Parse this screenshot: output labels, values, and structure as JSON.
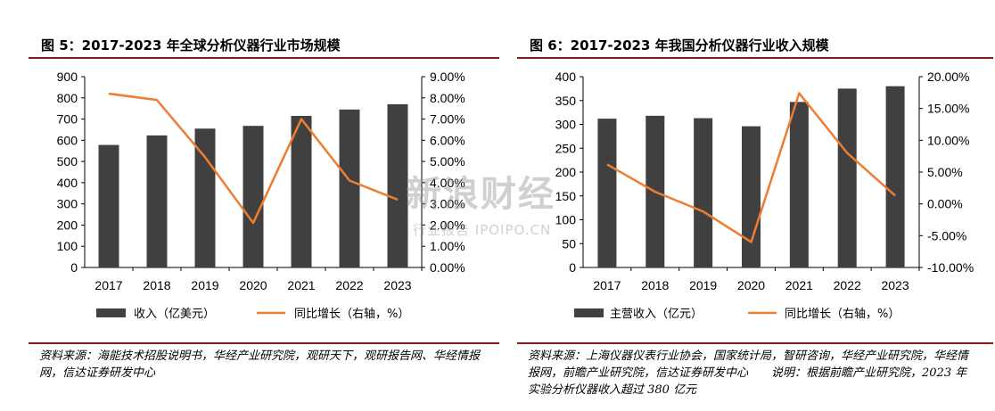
{
  "chart_data": [
    {
      "type": "bar",
      "title": "图 5：2017-2023 年全球分析仪器行业市场规模",
      "categories": [
        "2017",
        "2018",
        "2019",
        "2020",
        "2021",
        "2022",
        "2023"
      ],
      "series": [
        {
          "name": "收入（亿美元）",
          "type": "bar",
          "axis": "left",
          "values": [
            578,
            623,
            655,
            668,
            715,
            745,
            770
          ]
        },
        {
          "name": "同比增长（右轴，%）",
          "type": "line",
          "axis": "right",
          "values": [
            8.2,
            7.9,
            5.2,
            2.1,
            7.0,
            4.1,
            3.2
          ]
        }
      ],
      "y_left": {
        "range": [
          0,
          900
        ],
        "ticks": [
          "0",
          "100",
          "200",
          "300",
          "400",
          "500",
          "600",
          "700",
          "800",
          "900"
        ]
      },
      "y_right": {
        "range": [
          0,
          9
        ],
        "ticks": [
          "0.00%",
          "1.00%",
          "2.00%",
          "3.00%",
          "4.00%",
          "5.00%",
          "6.00%",
          "7.00%",
          "8.00%",
          "9.00%"
        ]
      },
      "legend_position": "bottom",
      "grid": false,
      "colors": {
        "bar": "#404040",
        "line": "#ed7d31"
      },
      "source": "资料来源：海能技术招股说明书，华经产业研究院，观研天下，观研报告网、华经情报网，信达证券研发中心"
    },
    {
      "type": "bar",
      "title": "图 6：2017-2023 年我国分析仪器行业收入规模",
      "categories": [
        "2017",
        "2018",
        "2019",
        "2020",
        "2021",
        "2022",
        "2023"
      ],
      "series": [
        {
          "name": "主营收入（亿元）",
          "type": "bar",
          "axis": "left",
          "values": [
            312,
            318,
            313,
            296,
            347,
            375,
            380
          ]
        },
        {
          "name": "同比增长（右轴，%）",
          "type": "line",
          "axis": "right",
          "values": [
            6.2,
            1.9,
            -1.2,
            -6.0,
            17.4,
            8.0,
            1.3
          ]
        }
      ],
      "y_left": {
        "range": [
          0,
          400
        ],
        "ticks": [
          "0",
          "50",
          "100",
          "150",
          "200",
          "250",
          "300",
          "350",
          "400"
        ]
      },
      "y_right": {
        "range": [
          -10,
          20
        ],
        "ticks": [
          "-10.00%",
          "-5.00%",
          "0.00%",
          "5.00%",
          "10.00%",
          "15.00%",
          "20.00%"
        ]
      },
      "legend_position": "bottom",
      "grid": false,
      "colors": {
        "bar": "#404040",
        "line": "#ed7d31"
      },
      "source": "资料来源：上海仪器仪表行业协会，国家统计局，智研咨询，华经产业研究院，华经情报网，前瞻产业研究院，信达证券研发中心　　说明：根据前瞻产业研究院，2023 年实验分析仪器收入超过 380 亿元"
    }
  ],
  "watermark": {
    "main": "新浪财经",
    "sub": "行业报告 IPOIPO.CN"
  }
}
